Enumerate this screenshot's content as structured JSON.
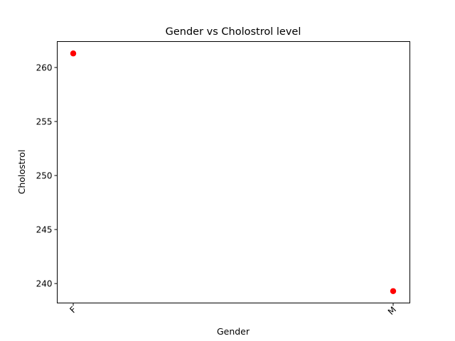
{
  "chart_data": {
    "type": "scatter",
    "title": "Gender vs Cholostrol level",
    "xlabel": "Gender",
    "ylabel": "Cholostrol",
    "categories": [
      "F",
      "M"
    ],
    "series": [
      {
        "values": [
          261.3,
          239.3
        ],
        "color": "#ff0000"
      }
    ],
    "yticks": [
      240,
      245,
      250,
      255,
      260
    ],
    "ylim": [
      238.2,
      262.4
    ],
    "x_tick_rotation_deg": 45,
    "grid": false,
    "legend": "none"
  }
}
